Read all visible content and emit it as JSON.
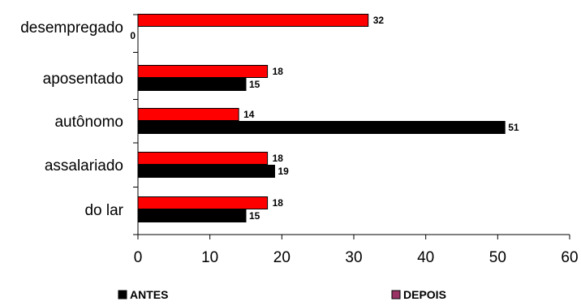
{
  "chart_data": {
    "type": "bar",
    "orientation": "horizontal",
    "categories": [
      "desempregado",
      "aposentado",
      "autônomo",
      "assalariado",
      "do lar"
    ],
    "series": [
      {
        "name": "ANTES",
        "values": [
          0,
          15,
          51,
          19,
          15
        ],
        "color": "#000000"
      },
      {
        "name": "DEPOIS",
        "values": [
          32,
          18,
          14,
          18,
          18
        ],
        "color": "#ff0000",
        "legend_color": "#993366"
      }
    ],
    "xlim": [
      0,
      60
    ],
    "x_ticks": [
      "0",
      "10",
      "20",
      "30",
      "40",
      "50",
      "60"
    ],
    "data_labels": {
      "ANTES": [
        "0",
        "15",
        "51",
        "19",
        "15"
      ],
      "DEPOIS": [
        "32",
        "18",
        "14",
        "18",
        "18"
      ]
    },
    "title": "",
    "xlabel": "",
    "ylabel": "",
    "grid": false,
    "legend_position": "bottom"
  }
}
